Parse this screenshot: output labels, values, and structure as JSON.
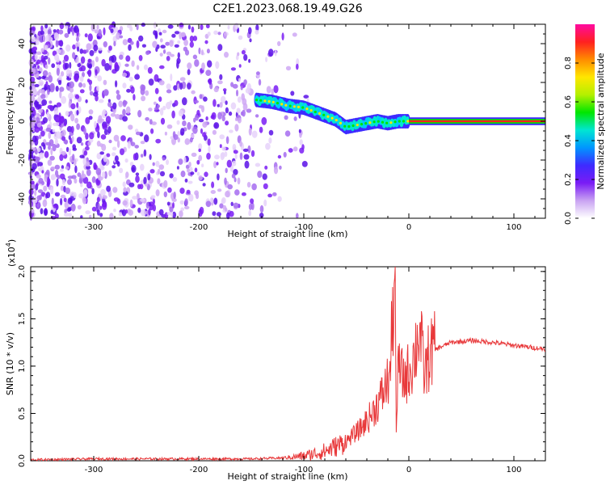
{
  "title": "C2E1.2023.068.19.49.G26",
  "chart_data": [
    {
      "type": "heatmap",
      "xlabel": "Height of straight line (km)",
      "ylabel": "Frequency (Hz)",
      "xlim": [
        -360,
        130
      ],
      "ylim": [
        -50,
        50
      ],
      "x_ticks": [
        -300,
        -200,
        -100,
        0,
        100
      ],
      "y_ticks": [
        -40,
        -20,
        0,
        20,
        40
      ],
      "colorbar": {
        "label": "Normalized spectral amplitude",
        "range": [
          0,
          1
        ],
        "ticks": [
          "0.0",
          "0.2",
          "0.4",
          "0.6",
          "0.8"
        ],
        "colors": [
          "#ffffff",
          "#c9a3f2",
          "#7a1cf5",
          "#3e2bff",
          "#0096ff",
          "#00e6d2",
          "#00e600",
          "#b4f000",
          "#ffe600",
          "#ff8c00",
          "#ff2020",
          "#ff0aa0"
        ]
      },
      "ridge": {
        "x": [
          -145,
          -130,
          -115,
          -100,
          -90,
          -80,
          -70,
          -60,
          -50,
          -40,
          -30,
          -20,
          -10,
          0,
          130
        ],
        "y": [
          11,
          10,
          8,
          7,
          5,
          3,
          1,
          -3,
          -2,
          -1,
          0,
          -1,
          0,
          0,
          0
        ]
      }
    },
    {
      "type": "line",
      "xlabel": "Height of straight line (km)",
      "ylabel": "SNR (10 * v/v)",
      "y_scale_label": "(x10",
      "y_scale_exp": "4",
      "xlim": [
        -360,
        130
      ],
      "ylim": [
        0,
        2.05
      ],
      "x_ticks": [
        -300,
        -200,
        -100,
        0,
        100
      ],
      "y_ticks": [
        "0.0",
        "0.5",
        "1.0",
        "1.5",
        "2.0"
      ],
      "color": "#e8383a",
      "series": [
        {
          "x": [
            -360,
            -300,
            -250,
            -200,
            -150,
            -120,
            -100,
            -80,
            -60,
            -45,
            -35,
            -25,
            -18,
            -15,
            -13,
            -12,
            -10,
            -5,
            0,
            5,
            10,
            15,
            20,
            30,
            40,
            60,
            80,
            100,
            130
          ],
          "y": [
            0.01,
            0.02,
            0.02,
            0.02,
            0.02,
            0.03,
            0.05,
            0.1,
            0.2,
            0.35,
            0.5,
            0.7,
            0.9,
            1.6,
            2.05,
            0.3,
            1.0,
            0.85,
            0.95,
            1.1,
            1.4,
            0.9,
            1.15,
            1.2,
            1.25,
            1.27,
            1.25,
            1.22,
            1.18
          ]
        }
      ]
    }
  ]
}
